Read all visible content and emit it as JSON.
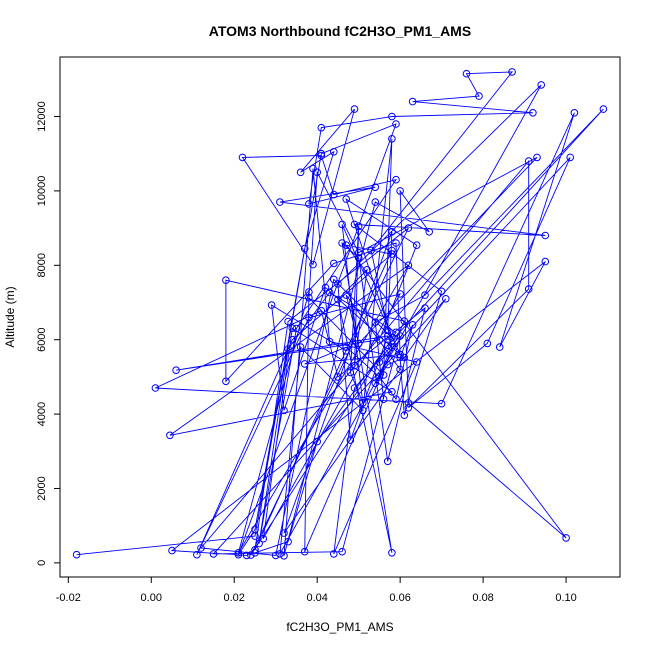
{
  "chart_data": {
    "type": "scatter",
    "title": "ATOM3 Northbound fC2H3O_PM1_AMS",
    "xlabel": "fC2H3O_PM1_AMS",
    "ylabel": "Altitude (m)",
    "xlim": [
      -0.022,
      0.113
    ],
    "ylim": [
      -380,
      13600
    ],
    "x_ticks": [
      "-0.02",
      "0.00",
      "0.02",
      "0.04",
      "0.06",
      "0.08",
      "0.10"
    ],
    "y_ticks": [
      "0",
      "2000",
      "4000",
      "6000",
      "8000",
      "10000",
      "12000"
    ],
    "grid": false,
    "legend": "none",
    "color": "#0000ff",
    "series": [
      {
        "marker": "open-circle",
        "connected": true,
        "points": [
          [
            -0.018,
            220
          ],
          [
            0.025,
            720
          ],
          [
            0.041,
            11000
          ],
          [
            0.059,
            11800
          ],
          [
            0.021,
            220
          ],
          [
            0.025,
            900
          ],
          [
            0.037,
            8450
          ],
          [
            0.044,
            11050
          ],
          [
            0.036,
            10500
          ],
          [
            0.049,
            12200
          ],
          [
            0.039,
            8020
          ],
          [
            0.022,
            10900
          ],
          [
            0.041,
            10950
          ],
          [
            0.044,
            9900
          ],
          [
            0.059,
            10300
          ],
          [
            0.035,
            6300
          ],
          [
            0.026,
            520
          ],
          [
            0.033,
            5750
          ],
          [
            0.043,
            7270
          ],
          [
            0.059,
            6200
          ],
          [
            0.024,
            210
          ],
          [
            0.062,
            9000
          ],
          [
            0.033,
            6490
          ],
          [
            0.025,
            350
          ],
          [
            0.058,
            8400
          ],
          [
            0.047,
            5700
          ],
          [
            0.029,
            6930
          ],
          [
            0.032,
            4100
          ],
          [
            0.042,
            7400
          ],
          [
            0.06,
            5600
          ],
          [
            0.037,
            5350
          ],
          [
            0.047,
            5800
          ],
          [
            0.055,
            5000
          ],
          [
            0.059,
            4400
          ],
          [
            0.063,
            6400
          ],
          [
            0.06,
            5520
          ],
          [
            0.061,
            3970
          ],
          [
            0.07,
            7300
          ],
          [
            0.049,
            9100
          ],
          [
            0.095,
            8800
          ],
          [
            0.031,
            9700
          ],
          [
            0.054,
            10100
          ],
          [
            0.038,
            9650
          ],
          [
            0.041,
            11700
          ],
          [
            0.058,
            12000
          ],
          [
            0.092,
            12100
          ],
          [
            0.063,
            12400
          ],
          [
            0.079,
            12550
          ],
          [
            0.076,
            13150
          ],
          [
            0.087,
            13200
          ],
          [
            0.053,
            8400
          ],
          [
            0.058,
            5800
          ],
          [
            0.054,
            4830
          ],
          [
            0.057,
            5330
          ],
          [
            0.061,
            5520
          ],
          [
            0.071,
            7100
          ],
          [
            0.015,
            240
          ],
          [
            0.046,
            300
          ],
          [
            0.06,
            6100
          ],
          [
            0.049,
            4700
          ],
          [
            0.044,
            240
          ],
          [
            0.064,
            5400
          ],
          [
            0.043,
            5950
          ],
          [
            0.039,
            10600
          ],
          [
            0.032,
            190
          ],
          [
            0.054,
            9700
          ],
          [
            0.067,
            8900
          ],
          [
            0.06,
            10000
          ],
          [
            0.062,
            4300
          ],
          [
            0.1,
            670
          ],
          [
            0.047,
            8540
          ],
          [
            0.058,
            8300
          ],
          [
            0.034,
            6000
          ],
          [
            0.011,
            220
          ],
          [
            0.038,
            6590
          ],
          [
            0.06,
            7230
          ],
          [
            0.027,
            650
          ],
          [
            0.034,
            6310
          ],
          [
            0.058,
            4600
          ],
          [
            0.0045,
            3430
          ],
          [
            0.062,
            8000
          ],
          [
            0.021,
            270
          ],
          [
            0.038,
            7280
          ],
          [
            0.037,
            300
          ],
          [
            0.061,
            6500
          ],
          [
            0.018,
            7600
          ],
          [
            0.018,
            4880
          ],
          [
            0.044,
            8050
          ],
          [
            0.059,
            8600
          ],
          [
            0.06,
            5600
          ],
          [
            0.046,
            9100
          ],
          [
            0.051,
            4300
          ],
          [
            0.048,
            5120
          ],
          [
            0.05,
            9050
          ],
          [
            0.049,
            5300
          ],
          [
            0.052,
            7880
          ],
          [
            0.045,
            7080
          ],
          [
            0.058,
            270
          ],
          [
            0.046,
            8600
          ],
          [
            0.05,
            8200
          ],
          [
            0.057,
            2730
          ],
          [
            0.066,
            6850
          ],
          [
            0.045,
            5000
          ],
          [
            0.041,
            6780
          ],
          [
            0.001,
            4700
          ],
          [
            0.07,
            4280
          ],
          [
            0.102,
            12100
          ],
          [
            0.084,
            5800
          ],
          [
            0.095,
            8100
          ],
          [
            0.005,
            330
          ],
          [
            0.023,
            200
          ],
          [
            0.025,
            270
          ],
          [
            0.033,
            570
          ],
          [
            0.04,
            3260
          ],
          [
            0.057,
            5850
          ],
          [
            0.109,
            12200
          ],
          [
            0.066,
            7200
          ],
          [
            0.054,
            6470
          ],
          [
            0.056,
            4400
          ],
          [
            0.055,
            5400
          ],
          [
            0.101,
            10900
          ],
          [
            0.081,
            5900
          ],
          [
            0.062,
            4170
          ],
          [
            0.091,
            7360
          ],
          [
            0.091,
            10800
          ],
          [
            0.012,
            400
          ],
          [
            0.03,
            200
          ],
          [
            0.044,
            7620
          ],
          [
            0.058,
            6050
          ],
          [
            0.047,
            9780
          ],
          [
            0.064,
            8540
          ],
          [
            0.055,
            6000
          ],
          [
            0.006,
            5180
          ],
          [
            0.057,
            6100
          ],
          [
            0.048,
            3300
          ],
          [
            0.045,
            7500
          ],
          [
            0.094,
            12850
          ],
          [
            0.031,
            240
          ],
          [
            0.036,
            5800
          ],
          [
            0.051,
            4100
          ],
          [
            0.058,
            11400
          ],
          [
            0.056,
            5050
          ],
          [
            0.038,
            7130
          ],
          [
            0.04,
            10500
          ],
          [
            0.05,
            8340
          ],
          [
            0.093,
            10900
          ],
          [
            0.05,
            5900
          ],
          [
            0.047,
            7200
          ],
          [
            0.06,
            5200
          ],
          [
            0.032,
            800
          ],
          [
            0.058,
            8900
          ],
          [
            0.057,
            6250
          ]
        ]
      }
    ]
  }
}
